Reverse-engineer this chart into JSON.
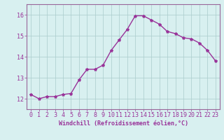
{
  "x": [
    0,
    1,
    2,
    3,
    4,
    5,
    6,
    7,
    8,
    9,
    10,
    11,
    12,
    13,
    14,
    15,
    16,
    17,
    18,
    19,
    20,
    21,
    22,
    23
  ],
  "y": [
    12.2,
    12.0,
    12.1,
    12.1,
    12.2,
    12.25,
    12.9,
    13.4,
    13.4,
    13.6,
    14.3,
    14.8,
    15.3,
    15.95,
    15.95,
    15.75,
    15.55,
    15.2,
    15.1,
    14.9,
    14.85,
    14.65,
    14.3,
    13.8
  ],
  "line_color": "#993399",
  "marker": "*",
  "marker_size": 3,
  "bg_color": "#d8f0f0",
  "grid_color": "#aacccc",
  "xlabel": "Windchill (Refroidissement éolien,°C)",
  "xlabel_color": "#993399",
  "tick_color": "#993399",
  "spine_color": "#996699",
  "ylim": [
    11.5,
    16.5
  ],
  "xlim": [
    -0.5,
    23.5
  ],
  "yticks": [
    12,
    13,
    14,
    15,
    16
  ],
  "xticks": [
    0,
    1,
    2,
    3,
    4,
    5,
    6,
    7,
    8,
    9,
    10,
    11,
    12,
    13,
    14,
    15,
    16,
    17,
    18,
    19,
    20,
    21,
    22,
    23
  ],
  "tick_fontsize": 6,
  "xlabel_fontsize": 6,
  "linewidth": 1.0
}
